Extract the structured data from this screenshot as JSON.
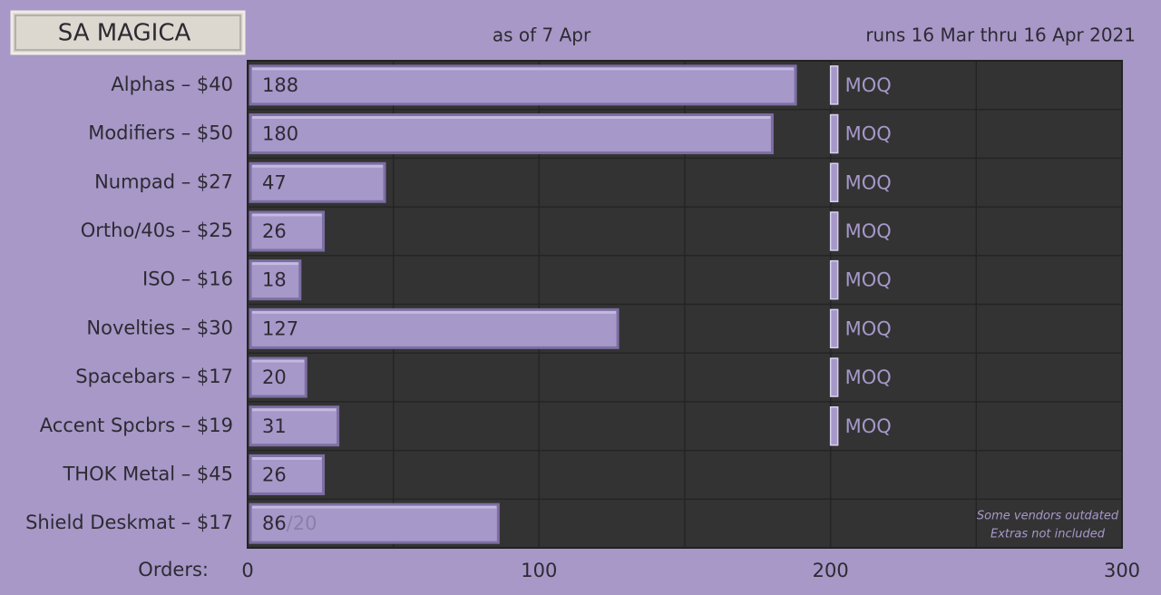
{
  "chart_data": {
    "type": "barh",
    "title": "SA MAGICA",
    "subtitle": "as of 7 Apr",
    "date_range": "runs 16 Mar thru 16 Apr 2021",
    "xlabel": "Orders:",
    "categories": [
      "Alphas – $40",
      "Modifiers – $50",
      "Numpad – $27",
      "Ortho/40s – $25",
      "ISO – $16",
      "Novelties – $30",
      "Spacebars – $17",
      "Accent Spcbrs – $19",
      "THOK Metal – $45",
      "Shield Deskmat – $17"
    ],
    "values": [
      188,
      180,
      47,
      26,
      18,
      127,
      20,
      31,
      26,
      86
    ],
    "bar_suffix": [
      null,
      null,
      null,
      null,
      null,
      null,
      null,
      null,
      null,
      "/20"
    ],
    "moq": [
      200,
      200,
      200,
      200,
      200,
      200,
      200,
      200,
      null,
      null
    ],
    "moq_label": "MOQ",
    "color": "#a698c9",
    "xlim": [
      0,
      300
    ],
    "xticks": [
      0,
      100,
      200,
      300
    ],
    "minor_xticks": [
      50,
      150,
      250
    ],
    "grid": true,
    "notes": [
      "Some vendors outdated",
      "Extras not included"
    ]
  }
}
